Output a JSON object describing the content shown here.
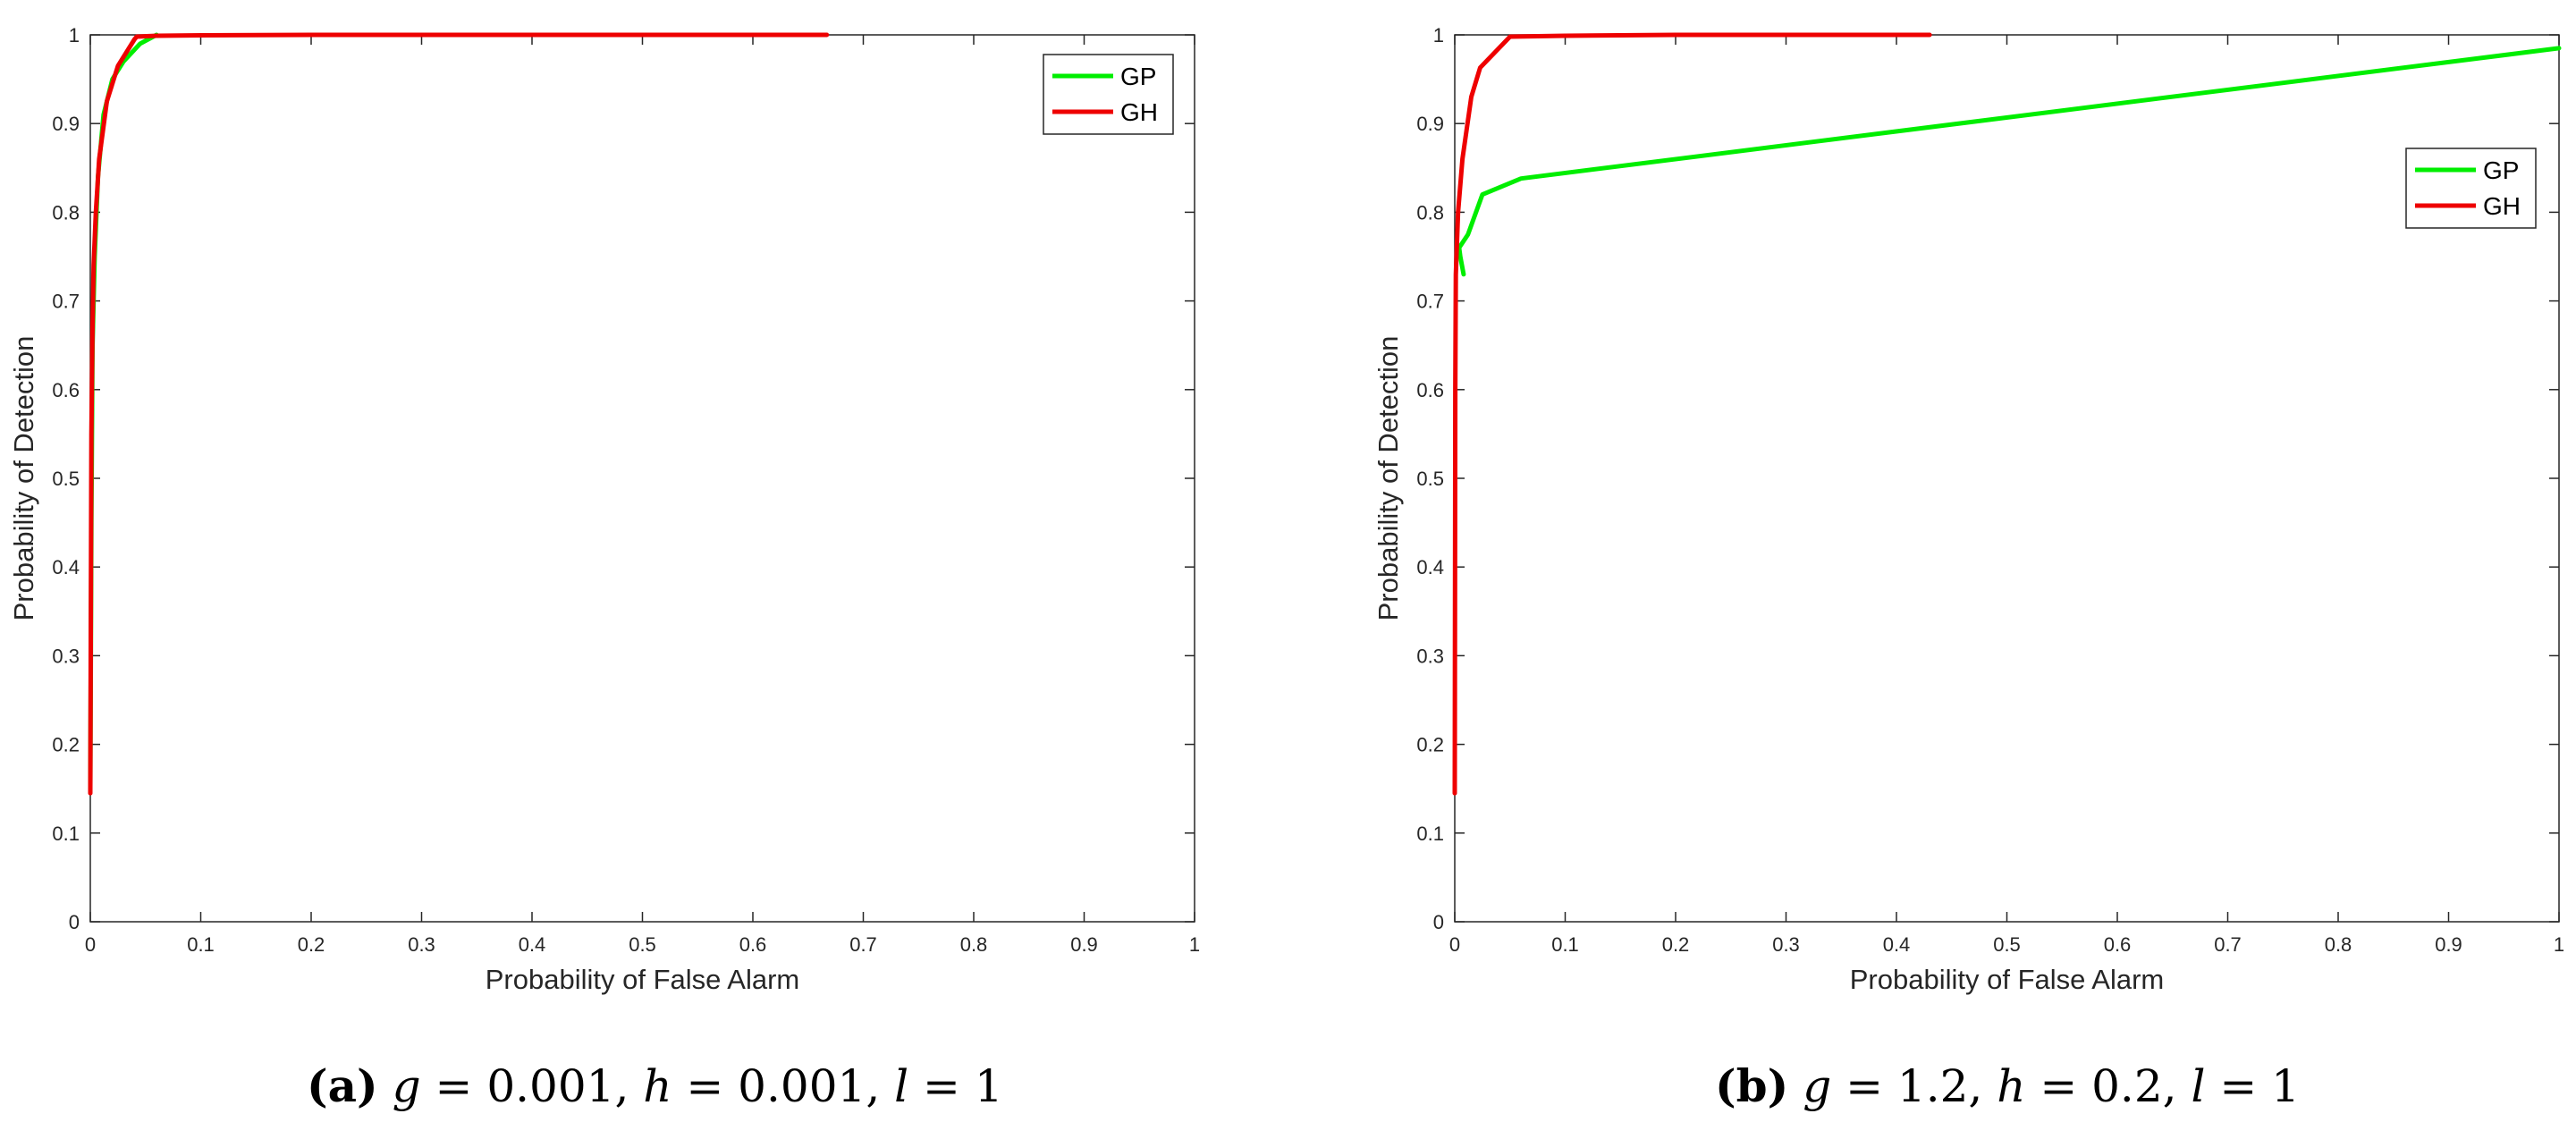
{
  "chart_data": [
    {
      "type": "line",
      "title": "",
      "xlabel": "Probability of False Alarm",
      "ylabel": "Probability of Detection",
      "xlim": [
        0,
        1
      ],
      "ylim": [
        0,
        1
      ],
      "xticks": [
        "0",
        "0.1",
        "0.2",
        "0.3",
        "0.4",
        "0.5",
        "0.6",
        "0.7",
        "0.8",
        "0.9",
        "1"
      ],
      "yticks": [
        "0",
        "0.1",
        "0.2",
        "0.3",
        "0.4",
        "0.5",
        "0.6",
        "0.7",
        "0.8",
        "0.9",
        "1"
      ],
      "grid": false,
      "legend_position": "top-right",
      "series": [
        {
          "name": "GP",
          "color": "#00ee00",
          "x": [
            0,
            0.001,
            0.002,
            0.004,
            0.007,
            0.012,
            0.02,
            0.03,
            0.045,
            0.06
          ],
          "y": [
            0.15,
            0.45,
            0.65,
            0.75,
            0.84,
            0.91,
            0.95,
            0.97,
            0.99,
            1.0
          ]
        },
        {
          "name": "GH",
          "color": "#ee0000",
          "x": [
            0,
            0.001,
            0.002,
            0.003,
            0.005,
            0.008,
            0.015,
            0.025,
            0.04,
            0.042,
            0.06,
            0.1,
            0.2,
            0.4,
            0.667
          ],
          "y": [
            0.145,
            0.55,
            0.67,
            0.74,
            0.8,
            0.86,
            0.925,
            0.965,
            0.995,
            0.998,
            0.999,
            0.9995,
            1.0,
            1.0,
            1.0
          ]
        }
      ]
    },
    {
      "type": "line",
      "title": "",
      "xlabel": "Probability of False Alarm",
      "ylabel": "Probability of Detection",
      "xlim": [
        0,
        1
      ],
      "ylim": [
        0,
        1
      ],
      "xticks": [
        "0",
        "0.1",
        "0.2",
        "0.3",
        "0.4",
        "0.5",
        "0.6",
        "0.7",
        "0.8",
        "0.9",
        "1"
      ],
      "yticks": [
        "0",
        "0.1",
        "0.2",
        "0.3",
        "0.4",
        "0.5",
        "0.6",
        "0.7",
        "0.8",
        "0.9",
        "1"
      ],
      "grid": false,
      "legend_position": "upper-right",
      "series": [
        {
          "name": "GP",
          "color": "#00ee00",
          "x": [
            0.008,
            0.005,
            0.004,
            0.012,
            0.025,
            0.06,
            1.0
          ],
          "y": [
            0.73,
            0.75,
            0.76,
            0.775,
            0.82,
            0.838,
            0.985
          ]
        },
        {
          "name": "GH",
          "color": "#ee0000",
          "x": [
            0,
            0.0005,
            0.001,
            0.003,
            0.007,
            0.015,
            0.023,
            0.05,
            0.1,
            0.2,
            0.43
          ],
          "y": [
            0.145,
            0.6,
            0.73,
            0.8,
            0.86,
            0.93,
            0.963,
            0.998,
            0.999,
            1.0,
            1.0
          ]
        }
      ]
    }
  ],
  "captions": [
    {
      "letter": "(a)",
      "g_name": "g",
      "g_value": "= 0.001,",
      "h_name": "h",
      "h_value": "= 0.001,",
      "l_name": "l",
      "l_value": "= 1"
    },
    {
      "letter": "(b)",
      "g_name": "g",
      "g_value": "= 1.2,",
      "h_name": "h",
      "h_value": "= 0.2,",
      "l_name": "l",
      "l_value": "= 1"
    }
  ]
}
